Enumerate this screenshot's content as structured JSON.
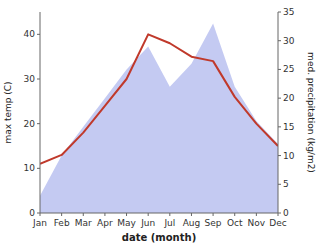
{
  "chart_data": {
    "type": "line",
    "xlabel": "date (month)",
    "ylabel": "max temp (C)",
    "y2label": "med. precipitation (kg/m2)",
    "categories": [
      "Jan",
      "Feb",
      "Mar",
      "Apr",
      "May",
      "Jun",
      "Jul",
      "Aug",
      "Sep",
      "Oct",
      "Nov",
      "Dec"
    ],
    "series": [
      {
        "type": "area",
        "axis": "y2",
        "color": "#b0b8ee",
        "values": [
          3,
          10,
          15,
          20,
          25,
          29,
          22,
          26,
          33,
          22,
          16,
          12
        ]
      },
      {
        "type": "line",
        "color": "#c0392b",
        "values": [
          11,
          13,
          18,
          24,
          30,
          40,
          38,
          35,
          34,
          26,
          20,
          15
        ]
      }
    ],
    "ylim": [
      0,
      45
    ],
    "yticks": [
      0,
      10,
      20,
      30,
      40
    ],
    "y2lim": [
      0,
      35
    ],
    "y2ticks": [
      0,
      5,
      10,
      15,
      20,
      25,
      30,
      35
    ],
    "grid": false
  }
}
